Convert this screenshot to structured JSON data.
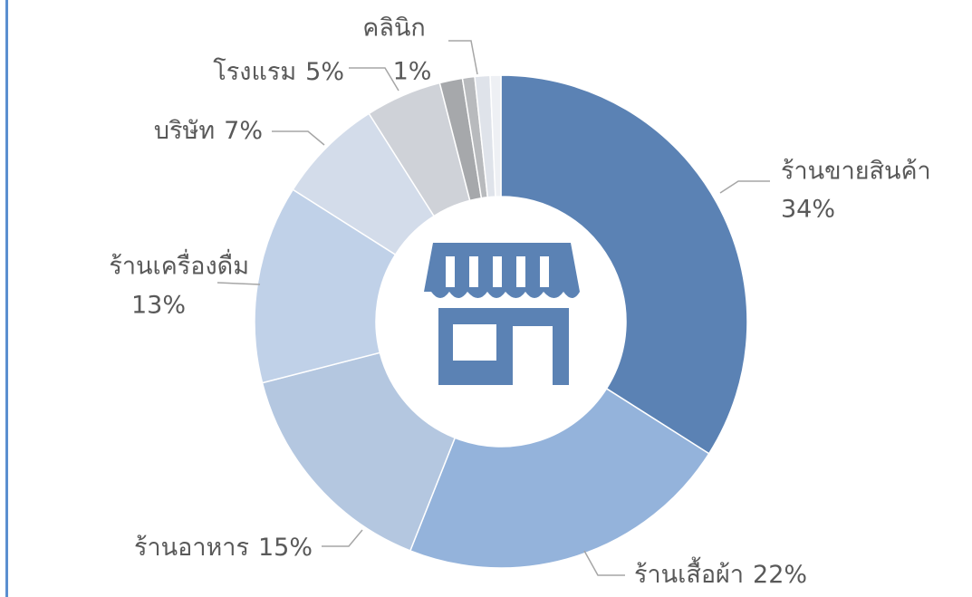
{
  "chart_data": {
    "type": "donut",
    "categories": [
      "ร้านขายสินค้า",
      "ร้านเสื้อผ้า",
      "ร้านอาหาร",
      "ร้านเครื่องดื่ม",
      "บริษัท",
      "โรงแรม",
      null,
      null,
      "คลินิก",
      null
    ],
    "values": [
      34,
      22,
      15,
      13,
      7,
      5,
      1.5,
      0.8,
      1,
      0.7
    ],
    "value_labels": [
      "34%",
      "22%",
      "15%",
      "13%",
      "7%",
      "5%",
      null,
      null,
      "1%",
      null
    ],
    "colors": [
      "#5b82b4",
      "#94b3db",
      "#b4c7e0",
      "#c0d1e8",
      "#d3dcea",
      "#cfd2d8",
      "#a6a8ab",
      "#b8babd",
      "#dfe3ea",
      "#eef0f4"
    ]
  }
}
